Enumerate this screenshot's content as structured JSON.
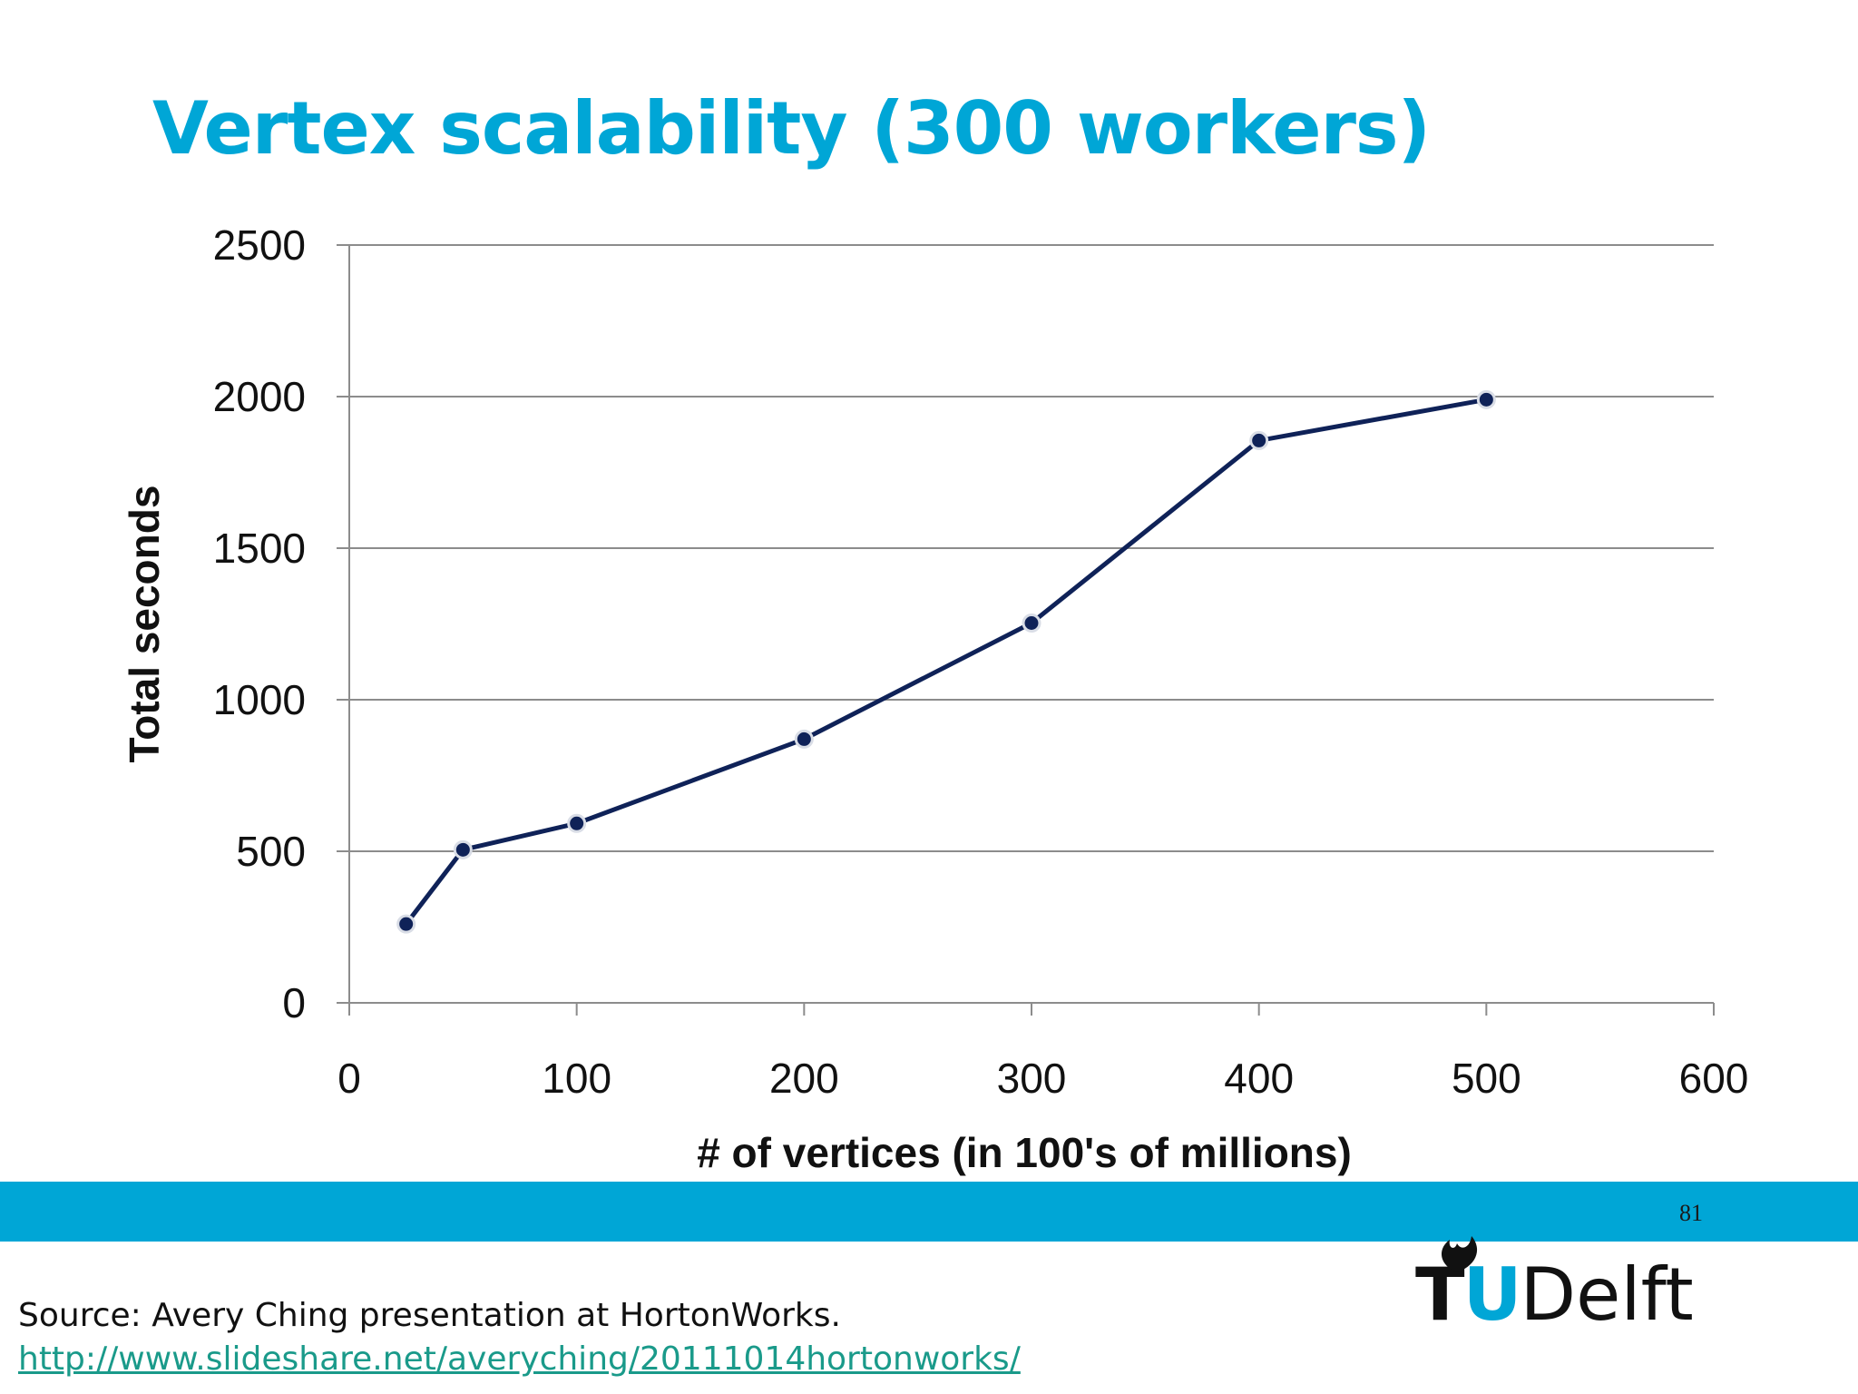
{
  "slide": {
    "title": "Vertex scalability (300 workers)",
    "page_number": "81",
    "source_text": "Source: Avery Ching presentation at HortonWorks.",
    "source_link": "http://www.slideshare.net/averyching/20111014hortonworks/",
    "logo": {
      "tu": "TU",
      "delft": "Delft"
    }
  },
  "colors": {
    "title": "#00a6d6",
    "footer_bar": "#00a6d6",
    "series_line": "#0f2258",
    "marker_fill": "#0f2258",
    "marker_stroke": "#d9dde6",
    "gridline": "#8c8c8c",
    "link": "#1a9a8a"
  },
  "chart_data": {
    "type": "line",
    "title": "",
    "xlabel": "# of vertices (in 100's of millions)",
    "ylabel": "Total seconds",
    "xlim": [
      0,
      600
    ],
    "ylim": [
      0,
      2500
    ],
    "xticks": [
      0,
      100,
      200,
      300,
      400,
      500,
      600
    ],
    "yticks": [
      0,
      500,
      1000,
      1500,
      2000,
      2500
    ],
    "grid": "horizontal",
    "legend": "none",
    "series": [
      {
        "x": [
          25,
          50,
          100,
          200,
          300,
          400,
          500
        ],
        "y": [
          260,
          505,
          592,
          870,
          1253,
          1855,
          1990
        ]
      }
    ]
  }
}
